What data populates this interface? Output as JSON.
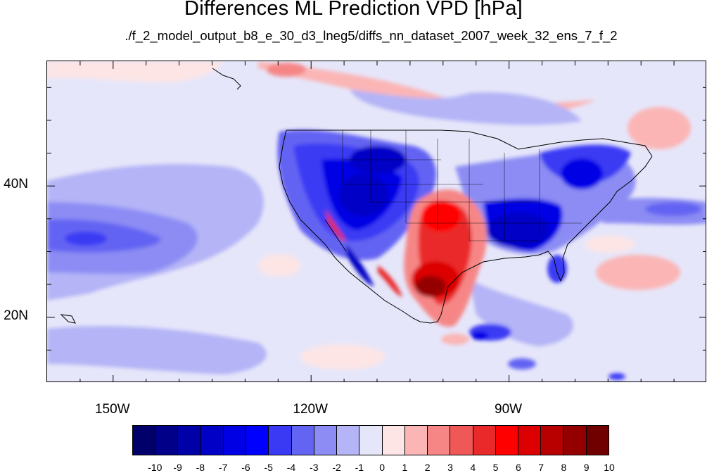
{
  "title": "Differences ML Prediction VPD [hPa]",
  "subtitle": "./f_2_model_output_b8_e_30_d3_lneg5/diffs_nn_dataset_2007_week_32_ens_7_f_2",
  "map": {
    "projection": "cylindrical equidistant",
    "lon_range": [
      -160,
      -60
    ],
    "lat_range": [
      10,
      59
    ],
    "y_ticks": [
      {
        "lat": 40,
        "label": "40N"
      },
      {
        "lat": 20,
        "label": "20N"
      }
    ],
    "x_ticks": [
      {
        "lon": -150,
        "label": "150W"
      },
      {
        "lon": -120,
        "label": "120W"
      },
      {
        "lon": -90,
        "label": "90W"
      }
    ],
    "field": "VPD difference",
    "units": "hPa"
  },
  "colorbar": {
    "labels": [
      "-10",
      "-9",
      "-8",
      "-7",
      "-6",
      "-5",
      "-4",
      "-3",
      "-2",
      "-1",
      "0",
      "1",
      "2",
      "3",
      "4",
      "5",
      "6",
      "7",
      "8",
      "9",
      "10"
    ],
    "colors": [
      "#01006b",
      "#000089",
      "#0000a8",
      "#0000c6",
      "#0000e5",
      "#0000ff",
      "#3a3af4",
      "#6464f3",
      "#8c8cf4",
      "#b4b4f7",
      "#e6e6fa",
      "#fde5e5",
      "#fbb5b5",
      "#f68686",
      "#f05858",
      "#ea2a2a",
      "#ff0000",
      "#dc0000",
      "#b80000",
      "#940000",
      "#700000"
    ]
  }
}
